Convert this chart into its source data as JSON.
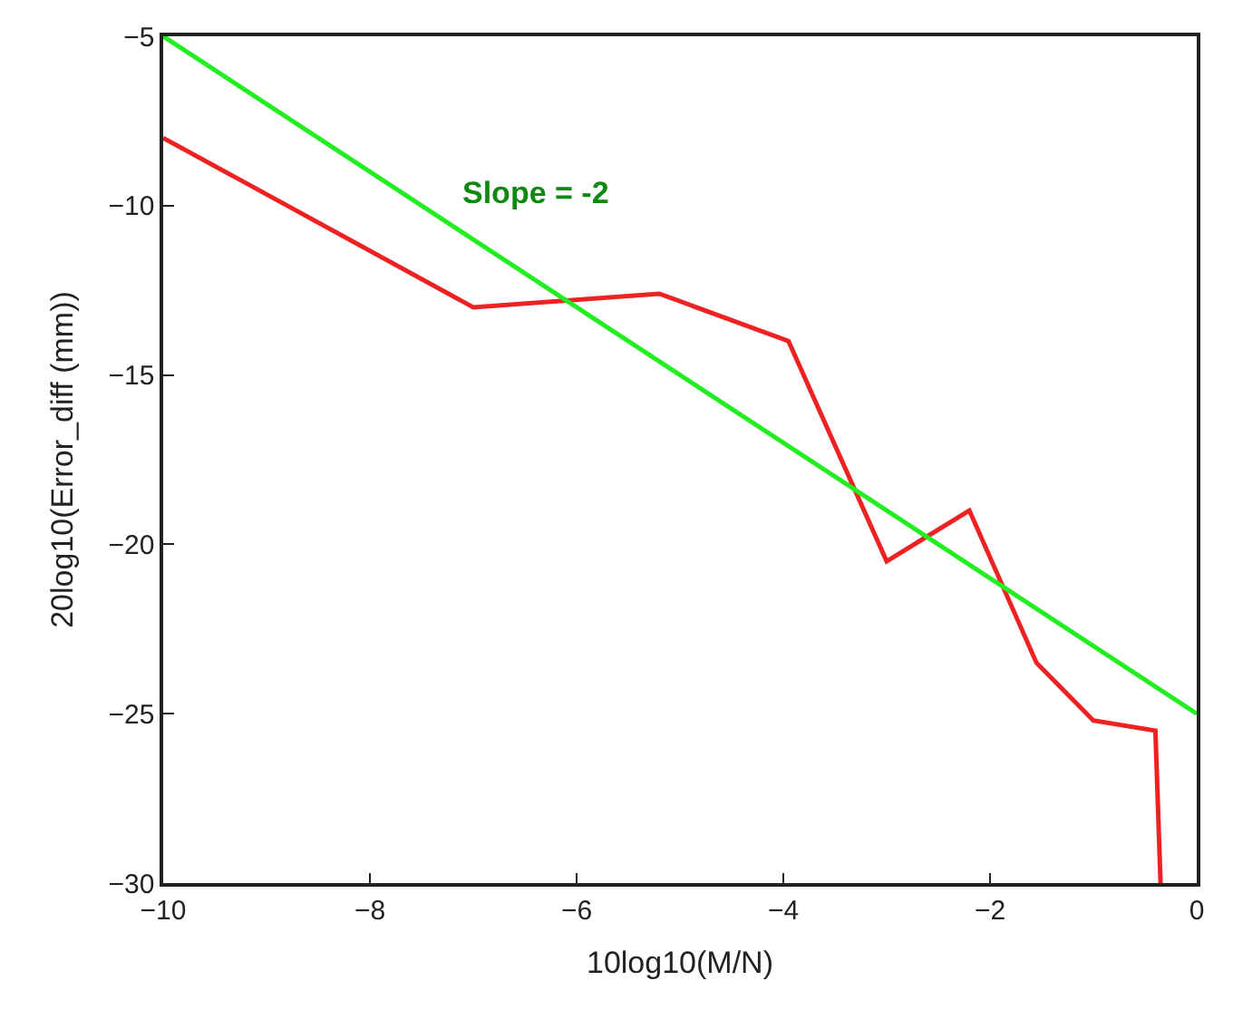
{
  "chart_data": {
    "type": "line",
    "xlabel": "10log10(M/N)",
    "ylabel": "20log10(Error_diff (mm))",
    "xlim": [
      -10,
      0
    ],
    "xticks": [
      -10,
      -8,
      -6,
      -4,
      -2,
      0
    ],
    "ylim": [
      -30,
      -5
    ],
    "yticks": [
      -30,
      -25,
      -20,
      -15,
      -10,
      -5
    ],
    "legend": false,
    "series": [
      {
        "color": "#ee2222",
        "x": [
          -10,
          -7,
          -5.2,
          -3.95,
          -3,
          -2.2,
          -1.55,
          -1,
          -0.4,
          -0.35
        ],
        "values": [
          -8,
          -13,
          -12.6,
          -14,
          -20.5,
          -19,
          -23.5,
          -25.2,
          -25.5,
          -30
        ]
      },
      {
        "color": "#22ee22",
        "x": [
          -10,
          0
        ],
        "values": [
          -5,
          -25
        ]
      }
    ],
    "annotations": [
      "Slope = -2"
    ]
  }
}
